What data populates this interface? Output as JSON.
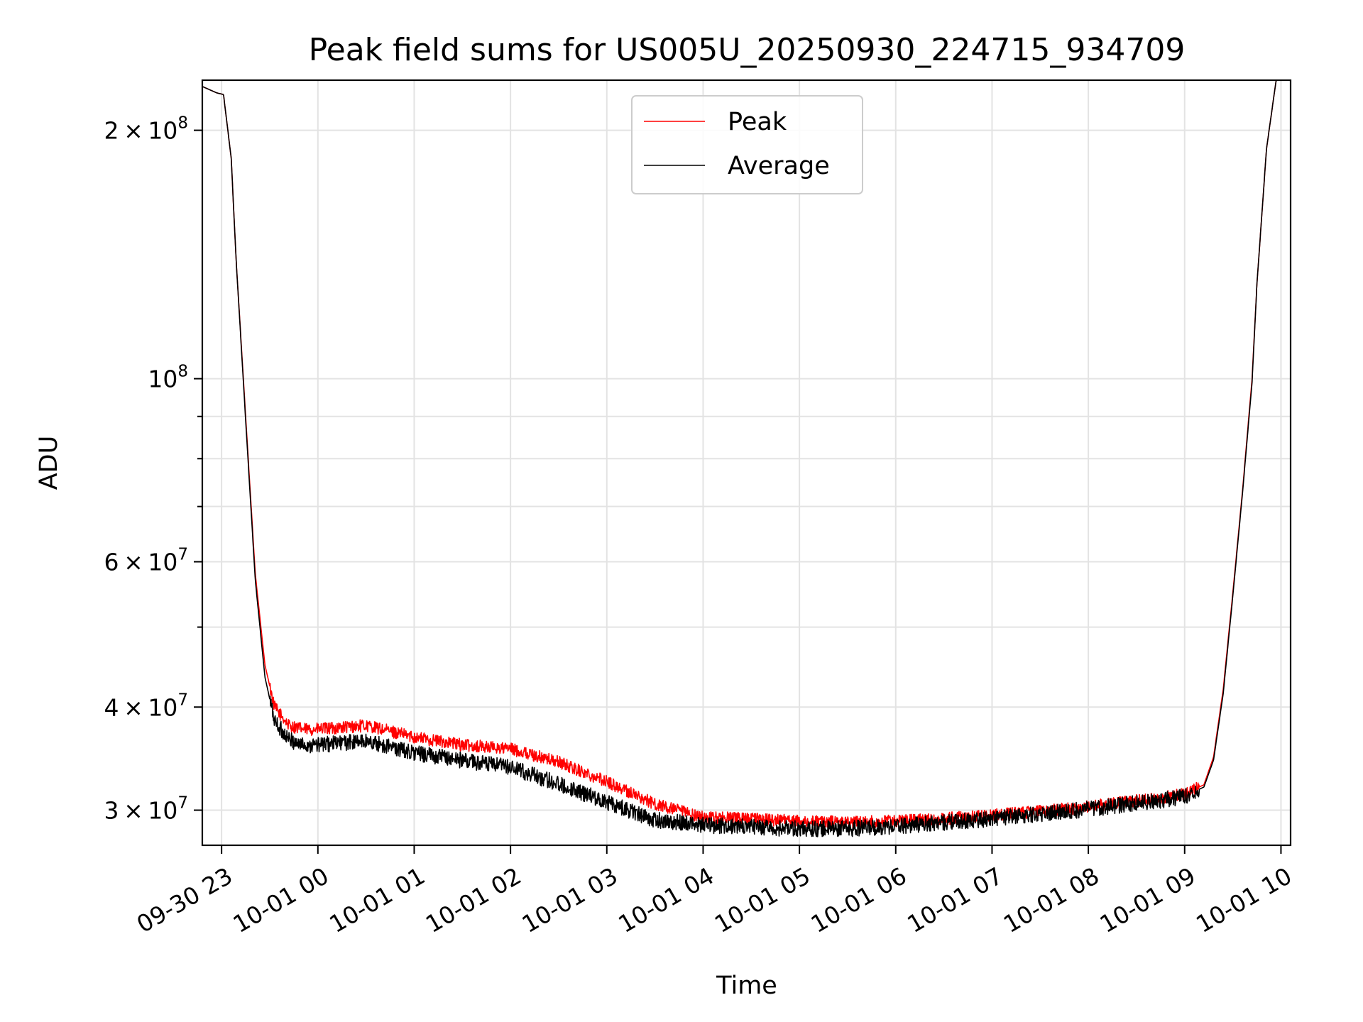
{
  "chart_data": {
    "type": "line",
    "title": "Peak field sums for US005U_20250930_224715_934709",
    "xlabel": "Time",
    "ylabel": "ADU",
    "y_scale": "log",
    "x_units": "hours since 2025-09-30 23:00",
    "xlim": [
      -0.2,
      11.1
    ],
    "ylim": [
      27200000,
      230000000
    ],
    "grid": true,
    "legend_position": "upper center",
    "x_ticks": [
      {
        "value": 0,
        "label": "09-30 23"
      },
      {
        "value": 1,
        "label": "10-01 00"
      },
      {
        "value": 2,
        "label": "10-01 01"
      },
      {
        "value": 3,
        "label": "10-01 02"
      },
      {
        "value": 4,
        "label": "10-01 03"
      },
      {
        "value": 5,
        "label": "10-01 04"
      },
      {
        "value": 6,
        "label": "10-01 05"
      },
      {
        "value": 7,
        "label": "10-01 06"
      },
      {
        "value": 8,
        "label": "10-01 07"
      },
      {
        "value": 9,
        "label": "10-01 08"
      },
      {
        "value": 10,
        "label": "10-01 09"
      },
      {
        "value": 11,
        "label": "10-01 10"
      }
    ],
    "y_ticks": [
      {
        "value": 30000000,
        "mantissa": "3",
        "exponent": "7"
      },
      {
        "value": 40000000,
        "mantissa": "4",
        "exponent": "7"
      },
      {
        "value": 60000000,
        "mantissa": "6",
        "exponent": "7"
      },
      {
        "value": 100000000,
        "mantissa": "",
        "exponent": "8"
      },
      {
        "value": 200000000,
        "mantissa": "2",
        "exponent": "8"
      }
    ],
    "y_minor_ticks": [
      50000000,
      70000000,
      80000000,
      90000000
    ],
    "series": [
      {
        "name": "Peak",
        "color": "#ff0000",
        "x": [
          -0.2,
          -0.05,
          0.02,
          0.1,
          0.15,
          0.25,
          0.35,
          0.45,
          0.55,
          0.7,
          0.85,
          1.0,
          1.5,
          1.75,
          2.0,
          2.5,
          3.0,
          3.5,
          4.0,
          4.5,
          5.0,
          5.5,
          6.0,
          6.5,
          7.0,
          7.5,
          8.0,
          8.5,
          9.0,
          9.5,
          9.8,
          10.0,
          10.2,
          10.3,
          10.4,
          10.5,
          10.6,
          10.7,
          10.75,
          10.85,
          10.95,
          11.1
        ],
        "y": [
          226000000,
          222000000,
          221000000,
          185000000,
          140000000,
          90000000,
          58000000,
          45000000,
          40000000,
          38000000,
          37600000,
          37600000,
          38000000,
          37400000,
          36800000,
          36000000,
          35600000,
          34300000,
          32500000,
          30500000,
          29400000,
          29300000,
          29100000,
          29000000,
          29100000,
          29300000,
          29600000,
          29900000,
          30300000,
          30800000,
          31100000,
          31400000,
          32200000,
          34800000,
          42000000,
          55000000,
          73000000,
          100000000,
          130000000,
          190000000,
          230000000,
          230000000
        ]
      },
      {
        "name": "Average",
        "color": "#000000",
        "x": [
          -0.2,
          -0.05,
          0.02,
          0.1,
          0.15,
          0.25,
          0.35,
          0.45,
          0.55,
          0.7,
          0.85,
          1.0,
          1.5,
          1.75,
          2.0,
          2.5,
          3.0,
          3.5,
          4.0,
          4.5,
          5.0,
          5.5,
          6.0,
          6.5,
          7.0,
          7.5,
          8.0,
          8.5,
          9.0,
          9.5,
          9.8,
          10.0,
          10.2,
          10.3,
          10.4,
          10.5,
          10.6,
          10.7,
          10.75,
          10.85,
          10.95,
          11.1
        ],
        "y": [
          226000000,
          222000000,
          221000000,
          185000000,
          140000000,
          89000000,
          57000000,
          43500000,
          38500000,
          36500000,
          36000000,
          36000000,
          36400000,
          35800000,
          35200000,
          34500000,
          33800000,
          32300000,
          30700000,
          29200000,
          28800000,
          28600000,
          28500000,
          28500000,
          28700000,
          29000000,
          29300000,
          29700000,
          30100000,
          30600000,
          30900000,
          31200000,
          32000000,
          34500000,
          41500000,
          54500000,
          72500000,
          99000000,
          130000000,
          190000000,
          230000000,
          230000000
        ]
      }
    ],
    "legend": [
      {
        "label": "Peak",
        "color": "#ff0000"
      },
      {
        "label": "Average",
        "color": "#000000"
      }
    ]
  }
}
